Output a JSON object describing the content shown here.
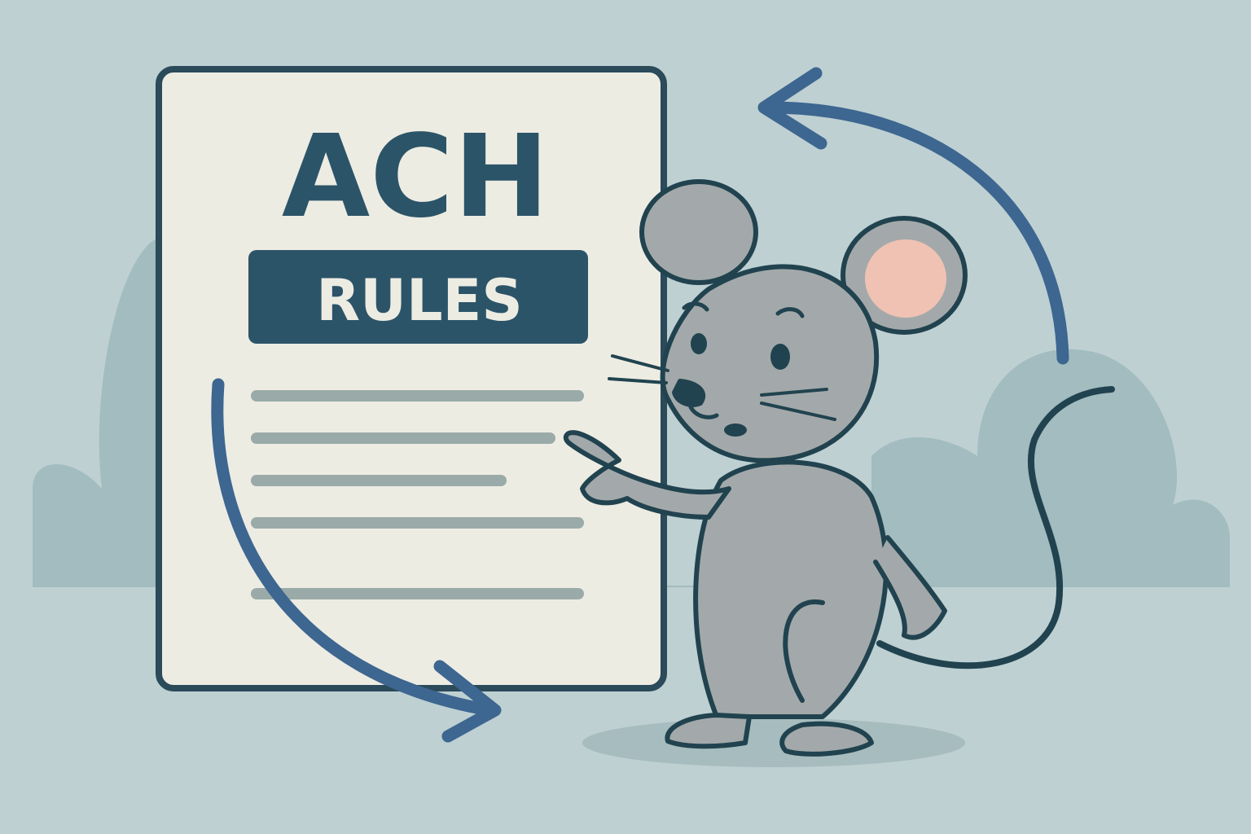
{
  "document": {
    "title": "ACH",
    "badge": "RULES"
  },
  "colors": {
    "background": "#bed0d2",
    "bushes": "#9fb9bd",
    "paper": "#edece3",
    "ink": "#2b4a5a",
    "title": "#2c5468",
    "arrows": "#3d6690",
    "lines": "#9aaaa8",
    "mouse": "#a3a9aa",
    "ear_inner": "#f0c2b4"
  },
  "icons": [
    "cycle-arrows-icon",
    "mouse-mascot",
    "document-icon"
  ]
}
